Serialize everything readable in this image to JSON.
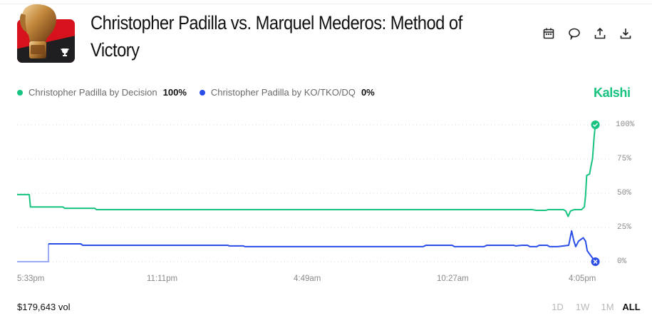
{
  "header": {
    "title": "Christopher Padilla vs. Marquel Mederos: Method of Victory",
    "icon": "boxing-glove-market-icon",
    "actions": [
      {
        "name": "calendar-button",
        "icon": "calendar-icon"
      },
      {
        "name": "comment-button",
        "icon": "comment-icon"
      },
      {
        "name": "share-button",
        "icon": "share-icon"
      },
      {
        "name": "download-button",
        "icon": "download-icon"
      }
    ]
  },
  "legend": {
    "items": [
      {
        "label": "Christopher Padilla by Decision",
        "value": "100%",
        "color": "#16c37f"
      },
      {
        "label": "Christopher Padilla by KO/TKO/DQ",
        "value": "0%",
        "color": "#2b4ee8"
      }
    ]
  },
  "brand": "Kalshi",
  "footer": {
    "volume": "$179,643 vol",
    "ranges": [
      "1D",
      "1W",
      "1M",
      "ALL"
    ],
    "active_range": "ALL"
  },
  "chart_data": {
    "type": "line",
    "title": "Christopher Padilla vs. Marquel Mederos: Method of Victory",
    "xlabel": "",
    "ylabel": "",
    "ylim": [
      0,
      100
    ],
    "y_ticks": [
      "100%",
      "75%",
      "50%",
      "25%",
      "0%"
    ],
    "x_ticks": [
      "5:33pm",
      "11:11pm",
      "4:49am",
      "10:27am",
      "4:05pm"
    ],
    "grid": true,
    "legend_position": "top-left",
    "series": [
      {
        "name": "Christopher Padilla by Decision",
        "color": "#16c37f",
        "final_value": 100,
        "points": [
          [
            0,
            49
          ],
          [
            2.1,
            49
          ],
          [
            2.3,
            40
          ],
          [
            7.9,
            40
          ],
          [
            8.2,
            39
          ],
          [
            13.4,
            39
          ],
          [
            13.7,
            38
          ],
          [
            88.8,
            38
          ],
          [
            89.5,
            37.5
          ],
          [
            91.2,
            37.5
          ],
          [
            91.5,
            38
          ],
          [
            94.2,
            38
          ],
          [
            94.6,
            37
          ],
          [
            95.0,
            33
          ],
          [
            95.4,
            37
          ],
          [
            96.0,
            38
          ],
          [
            97.3,
            38
          ],
          [
            97.8,
            40
          ],
          [
            98.0,
            48
          ],
          [
            98.2,
            63
          ],
          [
            98.7,
            64
          ],
          [
            98.9,
            69
          ],
          [
            99.2,
            75
          ],
          [
            99.5,
            92
          ],
          [
            99.7,
            100
          ]
        ]
      },
      {
        "name": "Christopher Padilla by KO/TKO/DQ",
        "color": "#2b4ee8",
        "final_value": 0,
        "points": [
          [
            0,
            0
          ],
          [
            5.4,
            0
          ],
          [
            5.4,
            13
          ],
          [
            11.0,
            13
          ],
          [
            11.3,
            12
          ],
          [
            36.3,
            12
          ],
          [
            36.6,
            11.5
          ],
          [
            39.0,
            11.5
          ],
          [
            39.3,
            11
          ],
          [
            70.0,
            11
          ],
          [
            70.5,
            12
          ],
          [
            75.0,
            12
          ],
          [
            75.4,
            11
          ],
          [
            80.5,
            11
          ],
          [
            81.0,
            12
          ],
          [
            85.6,
            12
          ],
          [
            86.0,
            11.5
          ],
          [
            87.0,
            12
          ],
          [
            88.0,
            12
          ],
          [
            88.4,
            11
          ],
          [
            89.6,
            11
          ],
          [
            90.0,
            12
          ],
          [
            91.4,
            12
          ],
          [
            91.8,
            11
          ],
          [
            93.2,
            11
          ],
          [
            94.2,
            11.5
          ],
          [
            95.1,
            12
          ],
          [
            95.6,
            22.5
          ],
          [
            96.0,
            15
          ],
          [
            96.3,
            11
          ],
          [
            96.8,
            15
          ],
          [
            97.6,
            17.5
          ],
          [
            98.0,
            15
          ],
          [
            98.3,
            8
          ],
          [
            98.8,
            5
          ],
          [
            99.5,
            1
          ],
          [
            99.7,
            0
          ]
        ]
      }
    ],
    "end_markers": [
      {
        "series": "Christopher Padilla by Decision",
        "type": "check",
        "value": 100
      },
      {
        "series": "Christopher Padilla by KO/TKO/DQ",
        "type": "x",
        "value": 0
      }
    ]
  }
}
